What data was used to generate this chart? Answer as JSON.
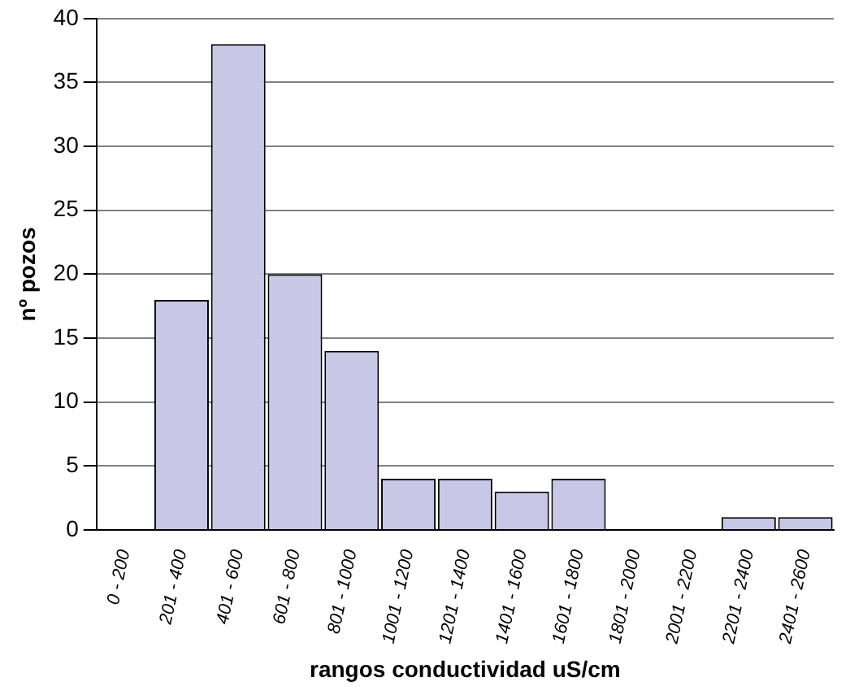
{
  "chart_data": {
    "type": "bar",
    "xlabel": "rangos conductividad uS/cm",
    "ylabel": "nº pozos",
    "categories": [
      "0 - 200",
      "201 - 400",
      "401 - 600",
      "601 - 800",
      "801 - 1000",
      "1001 - 1200",
      "1201 - 1400",
      "1401 - 1600",
      "1601 - 1800",
      "1801 - 2000",
      "2001 - 2200",
      "2201 - 2400",
      "2401 - 2600"
    ],
    "values": [
      0,
      18,
      38,
      20,
      14,
      4,
      4,
      3,
      4,
      0,
      0,
      1,
      1
    ],
    "color": "#c8c8e6",
    "ylim": [
      0,
      40
    ],
    "yticks": [
      0,
      5,
      10,
      15,
      20,
      25,
      30,
      35,
      40
    ],
    "grid": "y",
    "legend": false
  }
}
